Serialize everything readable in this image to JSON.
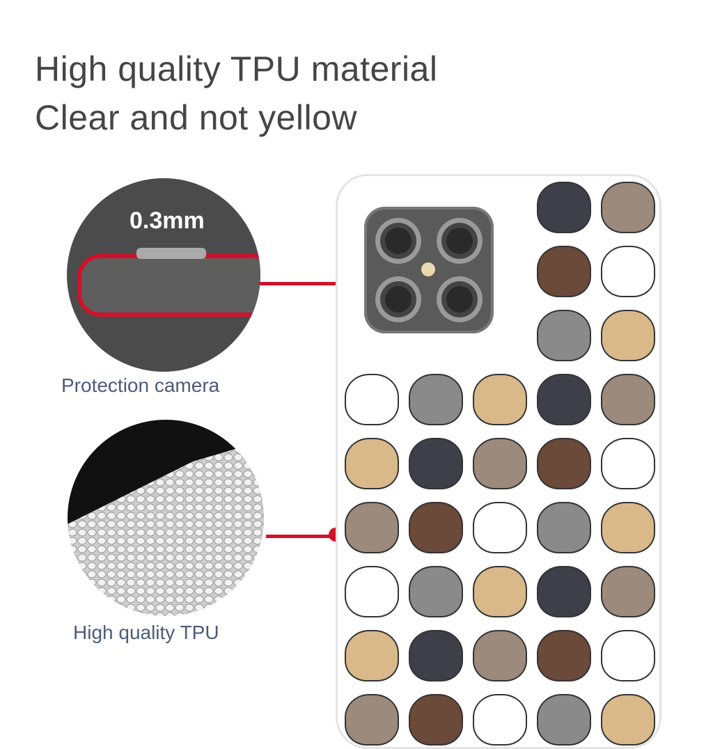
{
  "headline": {
    "line1": "High quality TPU material",
    "line2": "Clear and not yellow"
  },
  "feature_camera": {
    "thickness": "0.3mm",
    "label": "Protection camera"
  },
  "feature_material": {
    "label": "High quality TPU"
  },
  "colors": {
    "accent_red": "#d0112b",
    "label_text": "#4d5a78",
    "headline_text": "#454545"
  }
}
